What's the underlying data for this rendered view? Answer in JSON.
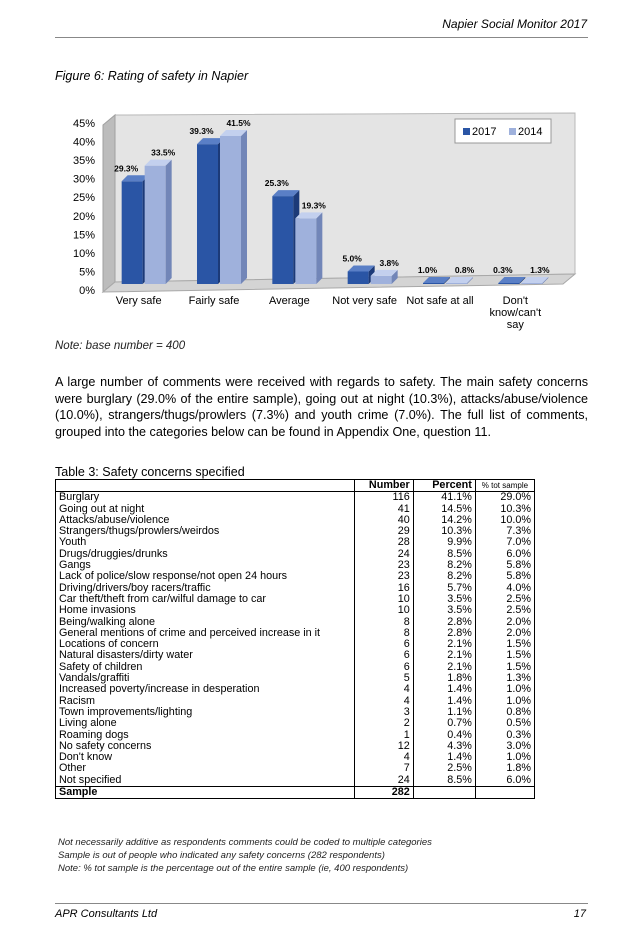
{
  "header": {
    "title": "Napier Social Monitor 2017"
  },
  "figure": {
    "caption": "Figure 6:  Rating of safety in Napier"
  },
  "chart_data": {
    "type": "bar",
    "categories": [
      "Very safe",
      "Fairly safe",
      "Average",
      "Not very safe",
      "Not safe at all",
      "Don't know/can't say"
    ],
    "category_lines": [
      [
        "Very safe"
      ],
      [
        "Fairly safe"
      ],
      [
        "Average"
      ],
      [
        "Not very safe"
      ],
      [
        "Not safe at all"
      ],
      [
        "Don't",
        "know/can't",
        "say"
      ]
    ],
    "series": [
      {
        "name": "2017",
        "values": [
          29.3,
          39.3,
          25.3,
          5.0,
          1.0,
          0.3
        ],
        "labels": [
          "29.3%",
          "39.3%",
          "25.3%",
          "5.0%",
          "1.0%",
          "0.3%"
        ]
      },
      {
        "name": "2014",
        "values": [
          33.5,
          41.5,
          19.3,
          3.8,
          0.8,
          1.3
        ],
        "labels": [
          "33.5%",
          "41.5%",
          "19.3%",
          "3.8%",
          "0.8%",
          "1.3%"
        ]
      }
    ],
    "yticks": [
      "0%",
      "5%",
      "10%",
      "15%",
      "20%",
      "25%",
      "30%",
      "35%",
      "40%",
      "45%"
    ],
    "ylim": [
      0,
      45
    ],
    "grid": false,
    "legend": "top-right",
    "colors": {
      "2017": "#2a55a5",
      "2014": "#9fb1dc"
    }
  },
  "note": "Note: base number = 400",
  "paragraph": "A large number of comments were received with regards to safety.  The main safety concerns were burglary (29.0% of the entire sample), going out at night (10.3%), attacks/abuse/violence (10.0%), strangers/thugs/prowlers (7.3%) and youth crime (7.0%).  The full list of comments, grouped into the categories below can be found in Appendix One, question 11.",
  "table": {
    "title": "Table 3:  Safety concerns specified",
    "headers": [
      "",
      "Number",
      "Percent",
      "% tot sample"
    ],
    "rows": [
      [
        "Burglary",
        "116",
        "41.1%",
        "29.0%"
      ],
      [
        "Going out at night",
        "41",
        "14.5%",
        "10.3%"
      ],
      [
        "Attacks/abuse/violence",
        "40",
        "14.2%",
        "10.0%"
      ],
      [
        "Strangers/thugs/prowlers/weirdos",
        "29",
        "10.3%",
        "7.3%"
      ],
      [
        "Youth",
        "28",
        "9.9%",
        "7.0%"
      ],
      [
        "Drugs/druggies/drunks",
        "24",
        "8.5%",
        "6.0%"
      ],
      [
        "Gangs",
        "23",
        "8.2%",
        "5.8%"
      ],
      [
        "Lack of police/slow response/not open 24 hours",
        "23",
        "8.2%",
        "5.8%"
      ],
      [
        "Driving/drivers/boy racers/traffic",
        "16",
        "5.7%",
        "4.0%"
      ],
      [
        "Car theft/theft from car/wilful damage to car",
        "10",
        "3.5%",
        "2.5%"
      ],
      [
        "Home invasions",
        "10",
        "3.5%",
        "2.5%"
      ],
      [
        "Being/walking alone",
        "8",
        "2.8%",
        "2.0%"
      ],
      [
        "General mentions of crime and perceived increase in it",
        "8",
        "2.8%",
        "2.0%"
      ],
      [
        "Locations of concern",
        "6",
        "2.1%",
        "1.5%"
      ],
      [
        "Natural disasters/dirty water",
        "6",
        "2.1%",
        "1.5%"
      ],
      [
        "Safety of children",
        "6",
        "2.1%",
        "1.5%"
      ],
      [
        "Vandals/graffiti",
        "5",
        "1.8%",
        "1.3%"
      ],
      [
        "Increased poverty/increase in desperation",
        "4",
        "1.4%",
        "1.0%"
      ],
      [
        "Racism",
        "4",
        "1.4%",
        "1.0%"
      ],
      [
        "Town improvements/lighting",
        "3",
        "1.1%",
        "0.8%"
      ],
      [
        "Living alone",
        "2",
        "0.7%",
        "0.5%"
      ],
      [
        "Roaming dogs",
        "1",
        "0.4%",
        "0.3%"
      ],
      [
        "No safety concerns",
        "12",
        "4.3%",
        "3.0%"
      ],
      [
        "Don't know",
        "4",
        "1.4%",
        "1.0%"
      ],
      [
        "Other",
        "7",
        "2.5%",
        "1.8%"
      ],
      [
        "Not specified",
        "24",
        "8.5%",
        "6.0%"
      ]
    ],
    "sample": [
      "Sample",
      "282",
      "",
      ""
    ],
    "footnotes": [
      "Not necessarily additive as respondents comments could be coded to multiple categories",
      "Sample is out of people who indicated any safety concerns (282 respondents)",
      "Note: % tot sample is the percentage out of the entire sample (ie, 400 respondents)"
    ]
  },
  "footer": {
    "left": "APR Consultants Ltd",
    "right": "17"
  }
}
